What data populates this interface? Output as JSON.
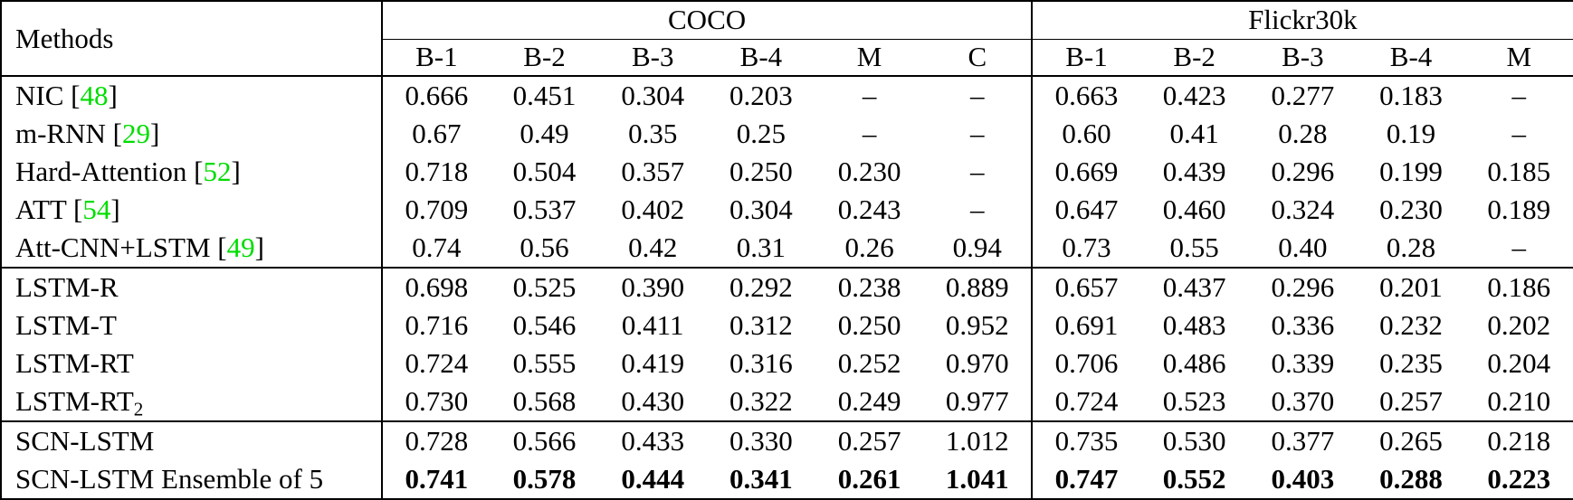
{
  "table": {
    "methods_label": "Methods",
    "groups": [
      {
        "label": "COCO",
        "cols": [
          "B-1",
          "B-2",
          "B-3",
          "B-4",
          "M",
          "C"
        ]
      },
      {
        "label": "Flickr30k",
        "cols": [
          "B-1",
          "B-2",
          "B-3",
          "B-4",
          "M"
        ]
      }
    ],
    "citation_color": "#00dd00",
    "missing_value": "–",
    "sections": [
      {
        "rows": [
          {
            "method": "NIC",
            "cite": "48",
            "coco": [
              "0.666",
              "0.451",
              "0.304",
              "0.203",
              "–",
              "–"
            ],
            "flickr": [
              "0.663",
              "0.423",
              "0.277",
              "0.183",
              "–"
            ]
          },
          {
            "method": "m-RNN",
            "cite": "29",
            "coco": [
              "0.67",
              "0.49",
              "0.35",
              "0.25",
              "–",
              "–"
            ],
            "flickr": [
              "0.60",
              "0.41",
              "0.28",
              "0.19",
              "–"
            ]
          },
          {
            "method": "Hard-Attention",
            "cite": "52",
            "coco": [
              "0.718",
              "0.504",
              "0.357",
              "0.250",
              "0.230",
              "–"
            ],
            "flickr": [
              "0.669",
              "0.439",
              "0.296",
              "0.199",
              "0.185"
            ]
          },
          {
            "method": "ATT",
            "cite": "54",
            "coco": [
              "0.709",
              "0.537",
              "0.402",
              "0.304",
              "0.243",
              "–"
            ],
            "flickr": [
              "0.647",
              "0.460",
              "0.324",
              "0.230",
              "0.189"
            ]
          },
          {
            "method": "Att-CNN+LSTM",
            "cite": "49",
            "coco": [
              "0.74",
              "0.56",
              "0.42",
              "0.31",
              "0.26",
              "0.94"
            ],
            "flickr": [
              "0.73",
              "0.55",
              "0.40",
              "0.28",
              "–"
            ]
          }
        ]
      },
      {
        "rows": [
          {
            "method": "LSTM-R",
            "coco": [
              "0.698",
              "0.525",
              "0.390",
              "0.292",
              "0.238",
              "0.889"
            ],
            "flickr": [
              "0.657",
              "0.437",
              "0.296",
              "0.201",
              "0.186"
            ]
          },
          {
            "method": "LSTM-T",
            "coco": [
              "0.716",
              "0.546",
              "0.411",
              "0.312",
              "0.250",
              "0.952"
            ],
            "flickr": [
              "0.691",
              "0.483",
              "0.336",
              "0.232",
              "0.202"
            ]
          },
          {
            "method": "LSTM-RT",
            "coco": [
              "0.724",
              "0.555",
              "0.419",
              "0.316",
              "0.252",
              "0.970"
            ],
            "flickr": [
              "0.706",
              "0.486",
              "0.339",
              "0.235",
              "0.204"
            ]
          },
          {
            "method": "LSTM-RT",
            "subscript": "2",
            "coco": [
              "0.730",
              "0.568",
              "0.430",
              "0.322",
              "0.249",
              "0.977"
            ],
            "flickr": [
              "0.724",
              "0.523",
              "0.370",
              "0.257",
              "0.210"
            ]
          }
        ]
      },
      {
        "rows": [
          {
            "method": "SCN-LSTM",
            "coco": [
              "0.728",
              "0.566",
              "0.433",
              "0.330",
              "0.257",
              "1.012"
            ],
            "flickr": [
              "0.735",
              "0.530",
              "0.377",
              "0.265",
              "0.218"
            ]
          },
          {
            "method": "SCN-LSTM Ensemble of 5",
            "bold_values": true,
            "coco": [
              "0.741",
              "0.578",
              "0.444",
              "0.341",
              "0.261",
              "1.041"
            ],
            "flickr": [
              "0.747",
              "0.552",
              "0.403",
              "0.288",
              "0.223"
            ]
          }
        ]
      }
    ]
  }
}
